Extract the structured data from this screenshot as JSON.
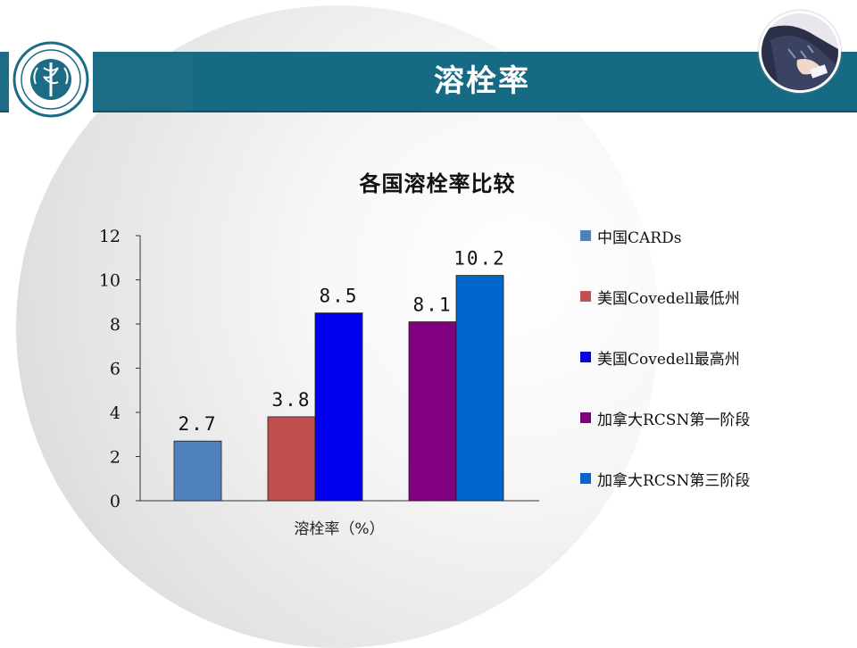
{
  "slide": {
    "title": "溶栓率"
  },
  "chart_data": {
    "type": "bar",
    "title": "各国溶栓率比较",
    "xlabel": "溶栓率（%）",
    "ylabel": "",
    "ylim": [
      0,
      12
    ],
    "yticks": [
      "0",
      "2",
      "4",
      "6",
      "8",
      "10",
      "12"
    ],
    "grid": false,
    "legend_position": "right",
    "series": [
      {
        "name": "中国CARDs",
        "color": "#4f81bd",
        "values": [
          2.7
        ],
        "labels": [
          "2.7"
        ]
      },
      {
        "name": "美国Covedell最低州",
        "color": "#c0504d",
        "values": [
          3.8
        ],
        "labels": [
          "3.8"
        ]
      },
      {
        "name": "美国Covedell最高州",
        "color": "#0000ee",
        "values": [
          8.5
        ],
        "labels": [
          "8.5"
        ]
      },
      {
        "name": "加拿大RCSN第一阶段",
        "color": "#800080",
        "values": [
          8.1
        ],
        "labels": [
          "8.1"
        ]
      },
      {
        "name": "加拿大RCSN第三阶段",
        "color": "#0066cc",
        "values": [
          10.2
        ],
        "labels": [
          "10.2"
        ]
      }
    ]
  },
  "colors": {
    "header": "#1c6c86",
    "title_text": "#ffffff"
  },
  "icons": {
    "logo": "hospital-emblem-icon",
    "photo": "person-photo"
  }
}
